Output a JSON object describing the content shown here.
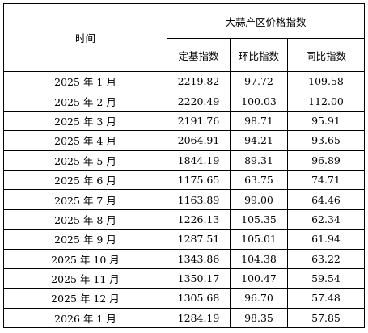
{
  "table": {
    "header": {
      "time": "时间",
      "group": "大蒜产区价格指数",
      "base_index": "定基指数",
      "mom_index": "环比指数",
      "yoy_index": "同比指数"
    },
    "rows": [
      {
        "time": "2025 年 1 月",
        "base": "2219.82",
        "mom": "97.72",
        "yoy": "109.58"
      },
      {
        "time": "2025 年 2 月",
        "base": "2220.49",
        "mom": "100.03",
        "yoy": "112.00"
      },
      {
        "time": "2025 年 3 月",
        "base": "2191.76",
        "mom": "98.71",
        "yoy": "95.91"
      },
      {
        "time": "2025 年 4 月",
        "base": "2064.91",
        "mom": "94.21",
        "yoy": "93.65"
      },
      {
        "time": "2025 年 5 月",
        "base": "1844.19",
        "mom": "89.31",
        "yoy": "96.89"
      },
      {
        "time": "2025 年 6 月",
        "base": "1175.65",
        "mom": "63.75",
        "yoy": "74.71"
      },
      {
        "time": "2025 年 7 月",
        "base": "1163.89",
        "mom": "99.00",
        "yoy": "64.46"
      },
      {
        "time": "2025 年 8 月",
        "base": "1226.13",
        "mom": "105.35",
        "yoy": "62.34"
      },
      {
        "time": "2025 年 9 月",
        "base": "1287.51",
        "mom": "105.01",
        "yoy": "61.94"
      },
      {
        "time": "2025 年 10 月",
        "base": "1343.86",
        "mom": "104.38",
        "yoy": "63.22"
      },
      {
        "time": "2025 年 11 月",
        "base": "1350.17",
        "mom": "100.47",
        "yoy": "59.54"
      },
      {
        "time": "2025 年 12 月",
        "base": "1305.68",
        "mom": "96.70",
        "yoy": "57.48"
      },
      {
        "time": "2026 年 1 月",
        "base": "1284.19",
        "mom": "98.35",
        "yoy": "57.85"
      }
    ]
  }
}
